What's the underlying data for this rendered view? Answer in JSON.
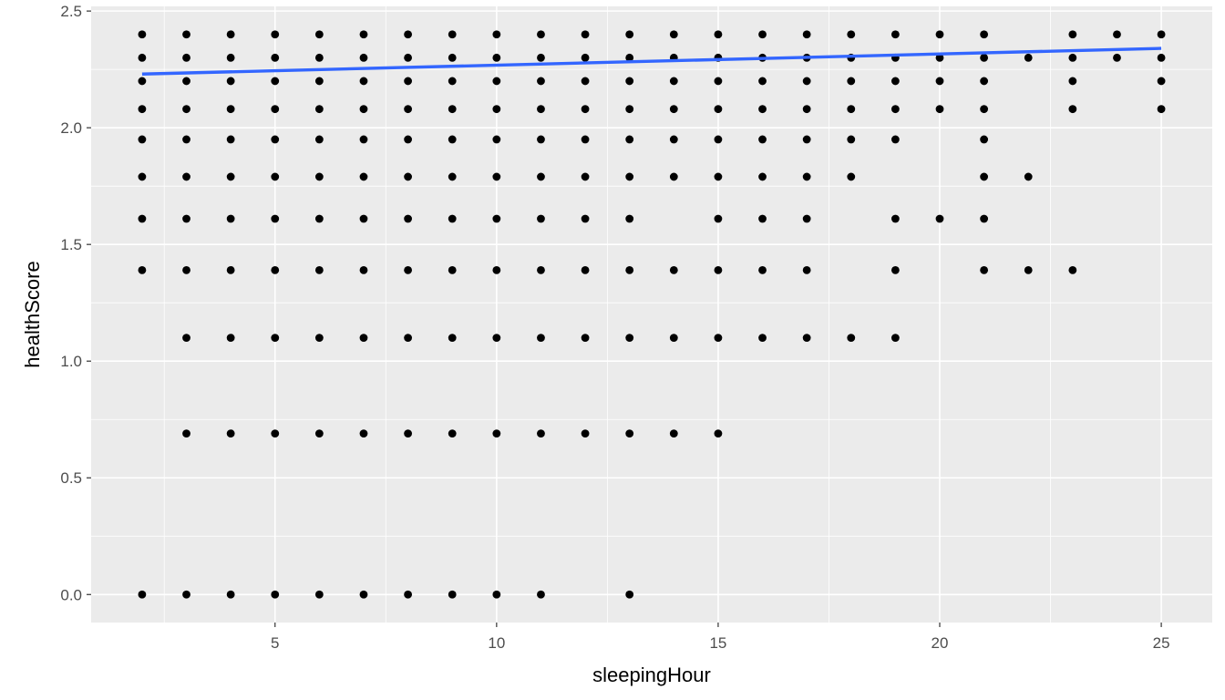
{
  "chart_data": {
    "type": "scatter",
    "title": "",
    "xlabel": "sleepingHour",
    "ylabel": "healthScore",
    "xlim": [
      0.85,
      26.15
    ],
    "ylim": [
      -0.12,
      2.52
    ],
    "x_ticks": [
      5,
      10,
      15,
      20,
      25
    ],
    "x_tick_labels": [
      "5",
      "10",
      "15",
      "20",
      "25"
    ],
    "y_ticks": [
      0,
      0.5,
      1.0,
      1.5,
      2.0,
      2.5
    ],
    "y_tick_labels": [
      "0.0",
      "0.5",
      "1.0",
      "1.5",
      "2.0",
      "2.5"
    ],
    "grid": true,
    "colors": {
      "panel": "#ebebeb",
      "grid": "#ffffff",
      "points": "#000000",
      "trend": "#3366ff"
    },
    "points": [
      [
        2,
        2.4
      ],
      [
        2,
        2.3
      ],
      [
        2,
        2.2
      ],
      [
        2,
        2.08
      ],
      [
        2,
        1.95
      ],
      [
        2,
        1.79
      ],
      [
        2,
        1.61
      ],
      [
        2,
        1.39
      ],
      [
        2,
        0
      ],
      [
        3,
        2.4
      ],
      [
        3,
        2.3
      ],
      [
        3,
        2.2
      ],
      [
        3,
        2.08
      ],
      [
        3,
        1.95
      ],
      [
        3,
        1.79
      ],
      [
        3,
        1.61
      ],
      [
        3,
        1.39
      ],
      [
        3,
        1.1
      ],
      [
        3,
        0.69
      ],
      [
        3,
        0
      ],
      [
        4,
        2.4
      ],
      [
        4,
        2.3
      ],
      [
        4,
        2.2
      ],
      [
        4,
        2.08
      ],
      [
        4,
        1.95
      ],
      [
        4,
        1.79
      ],
      [
        4,
        1.61
      ],
      [
        4,
        1.39
      ],
      [
        4,
        1.1
      ],
      [
        4,
        0.69
      ],
      [
        4,
        0
      ],
      [
        5,
        2.4
      ],
      [
        5,
        2.3
      ],
      [
        5,
        2.2
      ],
      [
        5,
        2.08
      ],
      [
        5,
        1.95
      ],
      [
        5,
        1.79
      ],
      [
        5,
        1.61
      ],
      [
        5,
        1.39
      ],
      [
        5,
        1.1
      ],
      [
        5,
        0.69
      ],
      [
        5,
        0
      ],
      [
        6,
        2.4
      ],
      [
        6,
        2.3
      ],
      [
        6,
        2.2
      ],
      [
        6,
        2.08
      ],
      [
        6,
        1.95
      ],
      [
        6,
        1.79
      ],
      [
        6,
        1.61
      ],
      [
        6,
        1.39
      ],
      [
        6,
        1.1
      ],
      [
        6,
        0.69
      ],
      [
        6,
        0
      ],
      [
        7,
        2.4
      ],
      [
        7,
        2.3
      ],
      [
        7,
        2.2
      ],
      [
        7,
        2.08
      ],
      [
        7,
        1.95
      ],
      [
        7,
        1.79
      ],
      [
        7,
        1.61
      ],
      [
        7,
        1.39
      ],
      [
        7,
        1.1
      ],
      [
        7,
        0.69
      ],
      [
        7,
        0
      ],
      [
        8,
        2.4
      ],
      [
        8,
        2.3
      ],
      [
        8,
        2.2
      ],
      [
        8,
        2.08
      ],
      [
        8,
        1.95
      ],
      [
        8,
        1.79
      ],
      [
        8,
        1.61
      ],
      [
        8,
        1.39
      ],
      [
        8,
        1.1
      ],
      [
        8,
        0.69
      ],
      [
        8,
        0
      ],
      [
        9,
        2.4
      ],
      [
        9,
        2.3
      ],
      [
        9,
        2.2
      ],
      [
        9,
        2.08
      ],
      [
        9,
        1.95
      ],
      [
        9,
        1.79
      ],
      [
        9,
        1.61
      ],
      [
        9,
        1.39
      ],
      [
        9,
        1.1
      ],
      [
        9,
        0.69
      ],
      [
        9,
        0
      ],
      [
        10,
        2.4
      ],
      [
        10,
        2.3
      ],
      [
        10,
        2.2
      ],
      [
        10,
        2.08
      ],
      [
        10,
        1.95
      ],
      [
        10,
        1.79
      ],
      [
        10,
        1.61
      ],
      [
        10,
        1.39
      ],
      [
        10,
        1.1
      ],
      [
        10,
        0.69
      ],
      [
        10,
        0
      ],
      [
        11,
        2.4
      ],
      [
        11,
        2.3
      ],
      [
        11,
        2.2
      ],
      [
        11,
        2.08
      ],
      [
        11,
        1.95
      ],
      [
        11,
        1.79
      ],
      [
        11,
        1.61
      ],
      [
        11,
        1.39
      ],
      [
        11,
        1.1
      ],
      [
        11,
        0.69
      ],
      [
        11,
        0
      ],
      [
        12,
        2.4
      ],
      [
        12,
        2.3
      ],
      [
        12,
        2.2
      ],
      [
        12,
        2.08
      ],
      [
        12,
        1.95
      ],
      [
        12,
        1.79
      ],
      [
        12,
        1.61
      ],
      [
        12,
        1.39
      ],
      [
        12,
        1.1
      ],
      [
        12,
        0.69
      ],
      [
        13,
        2.4
      ],
      [
        13,
        2.3
      ],
      [
        13,
        2.2
      ],
      [
        13,
        2.08
      ],
      [
        13,
        1.95
      ],
      [
        13,
        1.79
      ],
      [
        13,
        1.61
      ],
      [
        13,
        1.39
      ],
      [
        13,
        1.1
      ],
      [
        13,
        0.69
      ],
      [
        13,
        0
      ],
      [
        14,
        2.4
      ],
      [
        14,
        2.3
      ],
      [
        14,
        2.2
      ],
      [
        14,
        2.08
      ],
      [
        14,
        1.95
      ],
      [
        14,
        1.79
      ],
      [
        14,
        1.39
      ],
      [
        14,
        1.1
      ],
      [
        14,
        0.69
      ],
      [
        15,
        2.4
      ],
      [
        15,
        2.3
      ],
      [
        15,
        2.2
      ],
      [
        15,
        2.08
      ],
      [
        15,
        1.95
      ],
      [
        15,
        1.79
      ],
      [
        15,
        1.61
      ],
      [
        15,
        1.39
      ],
      [
        15,
        1.1
      ],
      [
        15,
        0.69
      ],
      [
        16,
        2.4
      ],
      [
        16,
        2.3
      ],
      [
        16,
        2.2
      ],
      [
        16,
        2.08
      ],
      [
        16,
        1.95
      ],
      [
        16,
        1.79
      ],
      [
        16,
        1.61
      ],
      [
        16,
        1.39
      ],
      [
        16,
        1.1
      ],
      [
        17,
        2.4
      ],
      [
        17,
        2.3
      ],
      [
        17,
        2.2
      ],
      [
        17,
        2.08
      ],
      [
        17,
        1.95
      ],
      [
        17,
        1.79
      ],
      [
        17,
        1.61
      ],
      [
        17,
        1.39
      ],
      [
        17,
        1.1
      ],
      [
        18,
        2.4
      ],
      [
        18,
        2.3
      ],
      [
        18,
        2.2
      ],
      [
        18,
        2.08
      ],
      [
        18,
        1.95
      ],
      [
        18,
        1.79
      ],
      [
        18,
        1.1
      ],
      [
        19,
        2.4
      ],
      [
        19,
        2.3
      ],
      [
        19,
        2.2
      ],
      [
        19,
        2.08
      ],
      [
        19,
        1.95
      ],
      [
        19,
        1.61
      ],
      [
        19,
        1.39
      ],
      [
        19,
        1.1
      ],
      [
        20,
        2.4
      ],
      [
        20,
        2.3
      ],
      [
        20,
        2.2
      ],
      [
        20,
        2.08
      ],
      [
        20,
        1.61
      ],
      [
        21,
        2.4
      ],
      [
        21,
        2.3
      ],
      [
        21,
        2.2
      ],
      [
        21,
        2.08
      ],
      [
        21,
        1.95
      ],
      [
        21,
        1.79
      ],
      [
        21,
        1.61
      ],
      [
        21,
        1.39
      ],
      [
        22,
        2.3
      ],
      [
        22,
        1.79
      ],
      [
        22,
        1.39
      ],
      [
        23,
        2.4
      ],
      [
        23,
        2.3
      ],
      [
        23,
        2.2
      ],
      [
        23,
        2.08
      ],
      [
        23,
        1.39
      ],
      [
        24,
        2.4
      ],
      [
        24,
        2.3
      ],
      [
        25,
        2.4
      ],
      [
        25,
        2.3
      ],
      [
        25,
        2.2
      ],
      [
        25,
        2.08
      ]
    ],
    "trend_line": {
      "x": [
        2,
        25
      ],
      "y": [
        2.23,
        2.34
      ]
    }
  }
}
